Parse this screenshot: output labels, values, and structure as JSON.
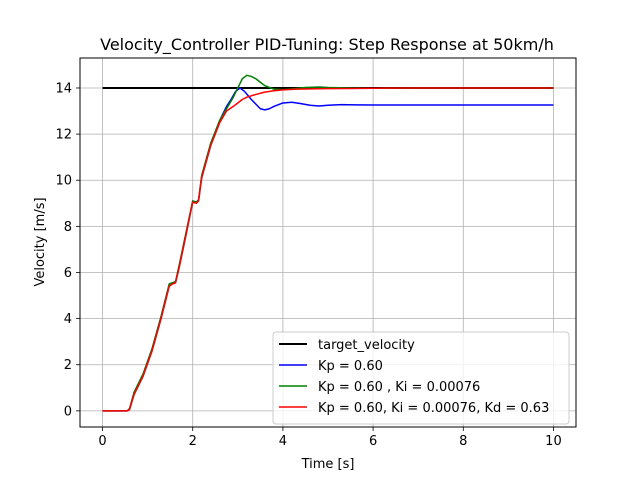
{
  "chart_data": {
    "type": "line",
    "title": "Velocity_Controller PID-Tuning: Step Response at 50km/h",
    "xlabel": "Time [s]",
    "ylabel": "Velocity [m/s]",
    "xlim": [
      -0.5,
      10.5
    ],
    "ylim": [
      -0.7,
      15.3
    ],
    "xticks": [
      0,
      2,
      4,
      6,
      8,
      10
    ],
    "yticks": [
      0,
      2,
      4,
      6,
      8,
      10,
      12,
      14
    ],
    "grid": true,
    "legend_position": "lower-right",
    "series": [
      {
        "name": "target_velocity",
        "color": "#000000",
        "width": 2,
        "x": [
          0,
          10
        ],
        "y": [
          14,
          14
        ]
      },
      {
        "name": "Kp = 0.60",
        "color": "#0000ff",
        "width": 1.5,
        "x": [
          0,
          0.55,
          0.6,
          0.7,
          0.9,
          1.1,
          1.3,
          1.48,
          1.55,
          1.62,
          1.7,
          1.85,
          2.0,
          2.08,
          2.13,
          2.2,
          2.4,
          2.6,
          2.75,
          2.85,
          2.95,
          3.05,
          3.15,
          3.3,
          3.5,
          3.6,
          3.7,
          3.8,
          4.0,
          4.2,
          4.4,
          4.6,
          4.8,
          5.0,
          5.3,
          5.6,
          6.0,
          7.0,
          8.0,
          9.0,
          10.0
        ],
        "y": [
          0,
          0,
          0.1,
          0.8,
          1.6,
          2.7,
          4.1,
          5.5,
          5.55,
          5.6,
          6.3,
          7.7,
          9.1,
          9.05,
          9.15,
          10.2,
          11.6,
          12.6,
          13.2,
          13.5,
          13.85,
          14.0,
          13.85,
          13.5,
          13.1,
          13.05,
          13.1,
          13.2,
          13.35,
          13.38,
          13.32,
          13.25,
          13.22,
          13.25,
          13.28,
          13.27,
          13.26,
          13.26,
          13.26,
          13.26,
          13.26
        ]
      },
      {
        "name": "Kp = 0.60 , Ki = 0.00076",
        "color": "#008000",
        "width": 1.5,
        "x": [
          0,
          0.55,
          0.6,
          0.7,
          0.9,
          1.1,
          1.3,
          1.48,
          1.55,
          1.62,
          1.7,
          1.85,
          2.0,
          2.08,
          2.13,
          2.2,
          2.4,
          2.6,
          2.75,
          2.9,
          3.0,
          3.1,
          3.2,
          3.3,
          3.4,
          3.5,
          3.6,
          3.8,
          4.0,
          4.2,
          4.5,
          4.8,
          5.0,
          5.5,
          6.0,
          7.0,
          8.0,
          9.0,
          10.0
        ],
        "y": [
          0,
          0,
          0.1,
          0.8,
          1.6,
          2.7,
          4.1,
          5.5,
          5.55,
          5.6,
          6.3,
          7.7,
          9.1,
          9.05,
          9.15,
          10.2,
          11.6,
          12.6,
          13.1,
          13.6,
          14.0,
          14.4,
          14.55,
          14.5,
          14.4,
          14.25,
          14.1,
          13.95,
          13.93,
          13.96,
          14.02,
          14.04,
          14.02,
          14.0,
          13.99,
          14.0,
          14.0,
          14.0,
          14.0
        ]
      },
      {
        "name": "Kp = 0.60, Ki = 0.00076, Kd = 0.63",
        "color": "#ff0000",
        "width": 1.5,
        "x": [
          0,
          0.55,
          0.6,
          0.7,
          0.9,
          1.1,
          1.3,
          1.48,
          1.55,
          1.62,
          1.7,
          1.85,
          2.0,
          2.08,
          2.13,
          2.2,
          2.4,
          2.6,
          2.75,
          2.9,
          3.0,
          3.1,
          3.2,
          3.4,
          3.6,
          3.8,
          4.0,
          4.3,
          4.6,
          5.0,
          5.5,
          6.0,
          7.0,
          8.0,
          9.0,
          10.0
        ],
        "y": [
          0,
          0,
          0.05,
          0.7,
          1.5,
          2.6,
          4.0,
          5.4,
          5.5,
          5.55,
          6.2,
          7.6,
          9.05,
          9.0,
          9.1,
          10.1,
          11.5,
          12.5,
          13.0,
          13.2,
          13.35,
          13.5,
          13.6,
          13.72,
          13.82,
          13.88,
          13.92,
          13.95,
          13.96,
          13.97,
          13.98,
          13.99,
          14.0,
          14.0,
          14.0,
          14.0
        ]
      }
    ]
  }
}
